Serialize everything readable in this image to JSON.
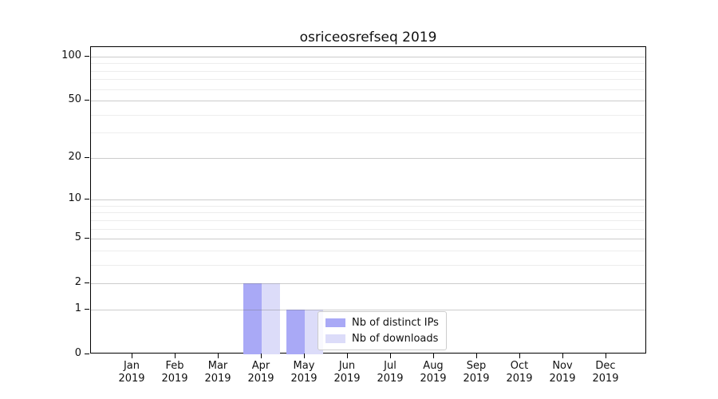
{
  "title": "osriceosrefseq 2019",
  "chart_data": {
    "type": "bar",
    "title": "osriceosrefseq 2019",
    "categories": [
      "Jan 2019",
      "Feb 2019",
      "Mar 2019",
      "Apr 2019",
      "May 2019",
      "Jun 2019",
      "Jul 2019",
      "Aug 2019",
      "Sep 2019",
      "Oct 2019",
      "Nov 2019",
      "Dec 2019"
    ],
    "series": [
      {
        "name": "Nb of distinct IPs",
        "color": "#a9a9f6",
        "values": [
          0,
          0,
          0,
          2,
          1,
          0,
          0,
          0,
          0,
          0,
          0,
          0
        ]
      },
      {
        "name": "Nb of downloads",
        "color": "#dcdcf9",
        "values": [
          0,
          0,
          0,
          2,
          1,
          0,
          0,
          0,
          0,
          0,
          0,
          0
        ]
      }
    ],
    "xlabel": "",
    "ylabel": "",
    "yscale": "log10(value+1)",
    "ylim": [
      0,
      116
    ],
    "ytick_values": [
      0,
      1,
      2,
      5,
      10,
      20,
      50,
      100
    ],
    "ytick_labels": [
      "0",
      "1",
      "2",
      "5",
      "10",
      "20",
      "50",
      "100"
    ],
    "yminor_values": [
      3,
      4,
      6,
      7,
      8,
      9,
      30,
      40,
      60,
      70,
      80,
      90
    ],
    "grid": "horizontal major+minor, drawn over bars",
    "legend_position": "inside lower center-right"
  }
}
